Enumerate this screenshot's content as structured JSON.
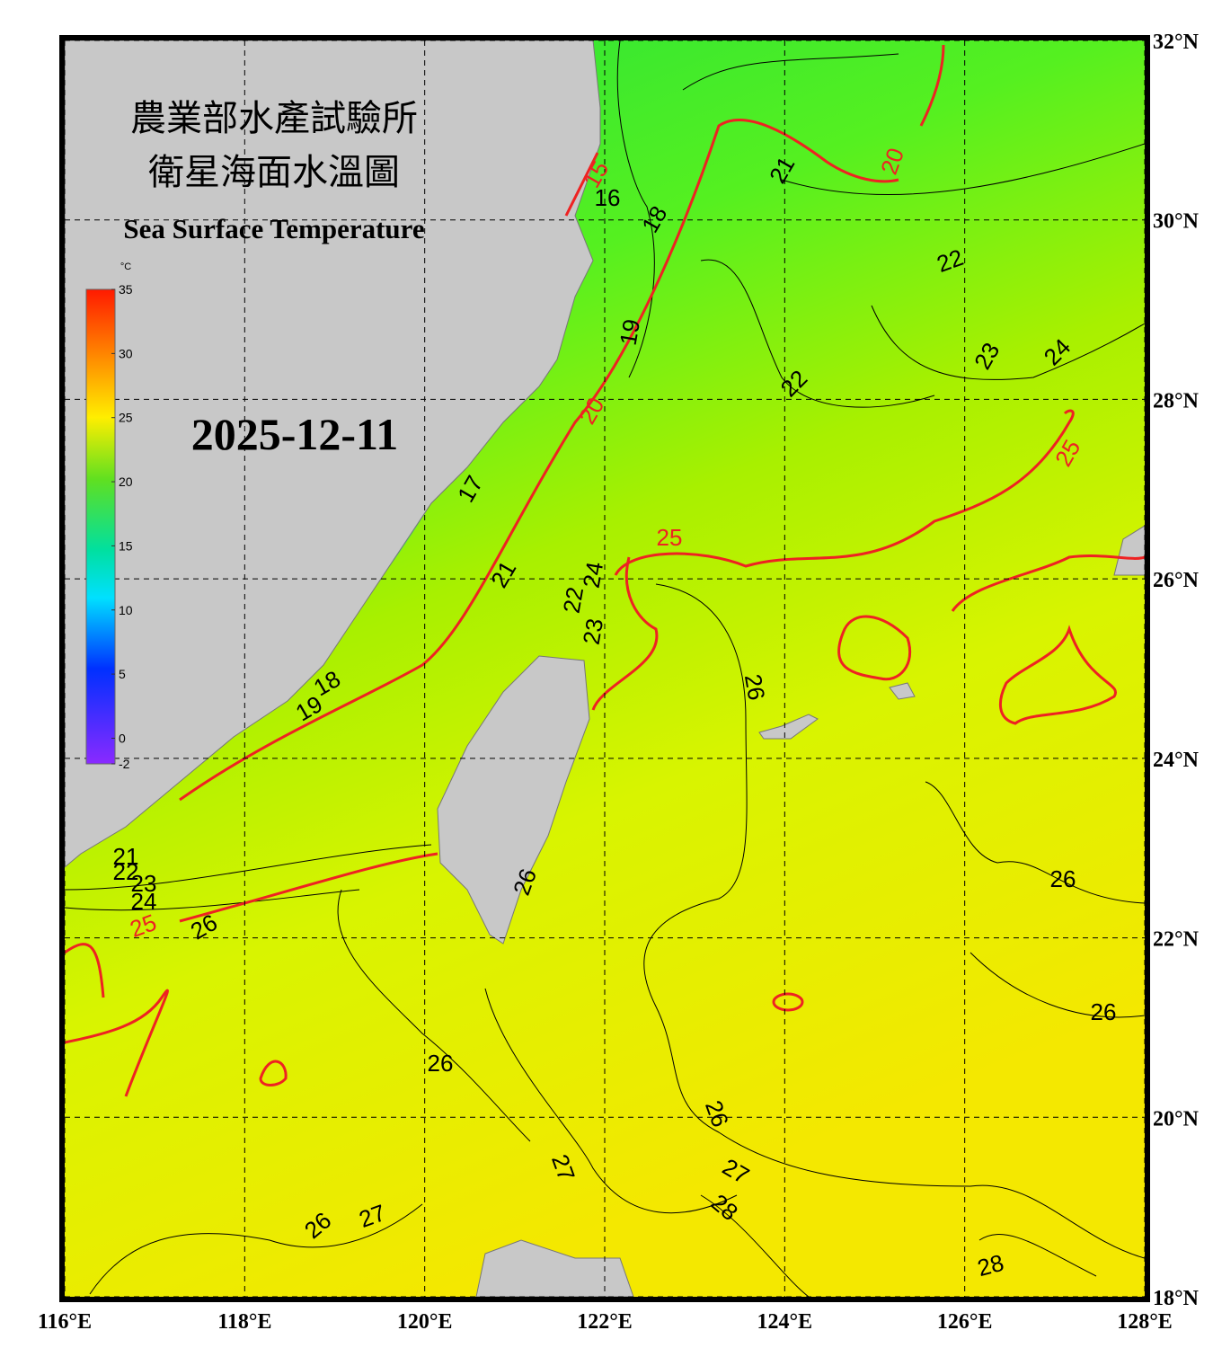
{
  "header": {
    "title_zh": [
      "農業部水產試驗所",
      "衛星海面水溫圖"
    ],
    "title_en": "Sea Surface Temperature",
    "date": "2025-12-11"
  },
  "colorbar": {
    "unit": "°C",
    "range": [
      -2,
      35
    ],
    "ticks": [
      35,
      30,
      25,
      20,
      15,
      10,
      5,
      0,
      -2
    ]
  },
  "axes": {
    "xlim": [
      116,
      128
    ],
    "ylim": [
      18,
      32
    ],
    "xticks": [
      {
        "value": 116,
        "label": "116°E"
      },
      {
        "value": 118,
        "label": "118°E"
      },
      {
        "value": 120,
        "label": "120°E"
      },
      {
        "value": 122,
        "label": "122°E"
      },
      {
        "value": 124,
        "label": "124°E"
      },
      {
        "value": 126,
        "label": "126°E"
      },
      {
        "value": 128,
        "label": "128°E"
      }
    ],
    "yticks": [
      {
        "value": 32,
        "label": "32°N"
      },
      {
        "value": 30,
        "label": "30°N"
      },
      {
        "value": 28,
        "label": "28°N"
      },
      {
        "value": 26,
        "label": "26°N"
      },
      {
        "value": 24,
        "label": "24°N"
      },
      {
        "value": 22,
        "label": "22°N"
      },
      {
        "value": 20,
        "label": "20°N"
      },
      {
        "value": 18,
        "label": "18°N"
      }
    ]
  },
  "contour_labels": [
    15,
    16,
    18,
    21,
    20,
    22,
    19,
    23,
    24,
    22,
    20,
    25,
    17,
    25,
    21,
    24,
    22,
    23,
    26,
    18,
    19,
    21,
    22,
    23,
    24,
    25,
    26,
    26,
    26,
    26,
    26,
    26,
    27,
    27,
    28,
    26,
    27,
    28
  ]
}
